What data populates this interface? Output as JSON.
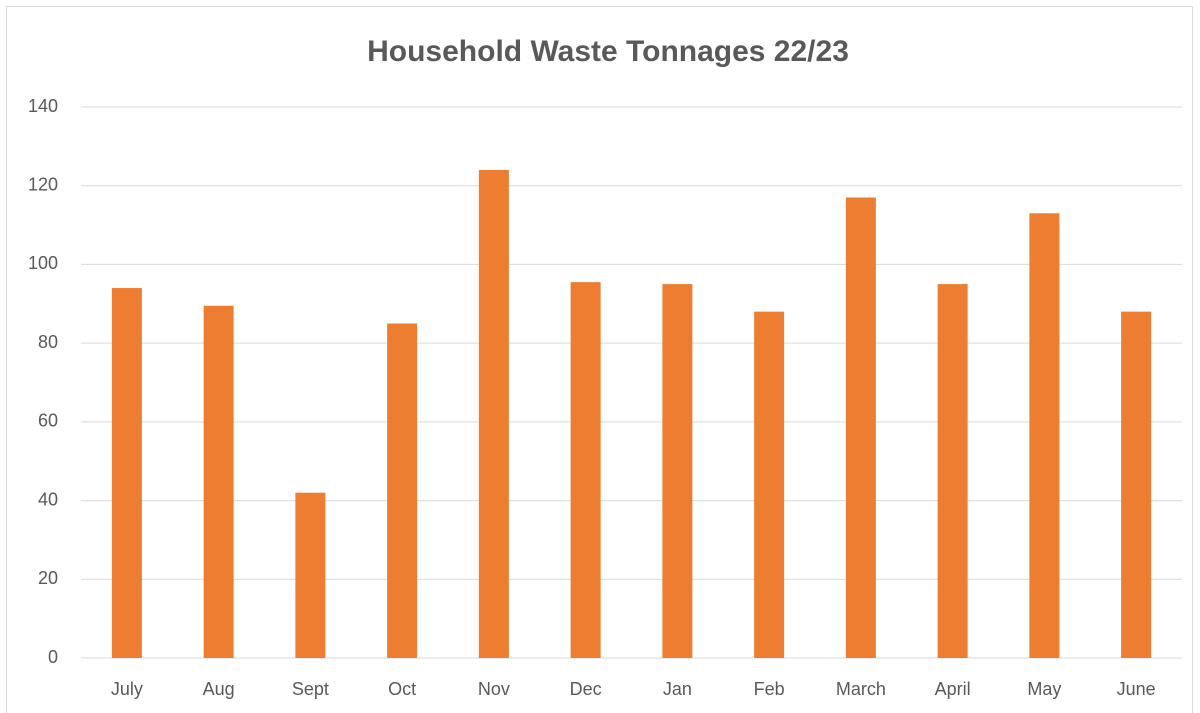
{
  "chart_data": {
    "type": "bar",
    "title": "Household Waste Tonnages 22/23",
    "categories": [
      "July",
      "Aug",
      "Sept",
      "Oct",
      "Nov",
      "Dec",
      "Jan",
      "Feb",
      "March",
      "April",
      "May",
      "June"
    ],
    "values": [
      94,
      89.5,
      42,
      85,
      124,
      95.5,
      95,
      88,
      117,
      95,
      113,
      88
    ],
    "color": "#ed7d31",
    "ylim": [
      0,
      140
    ],
    "yticks": [
      0,
      20,
      40,
      60,
      80,
      100,
      120,
      140
    ],
    "grid": true
  }
}
